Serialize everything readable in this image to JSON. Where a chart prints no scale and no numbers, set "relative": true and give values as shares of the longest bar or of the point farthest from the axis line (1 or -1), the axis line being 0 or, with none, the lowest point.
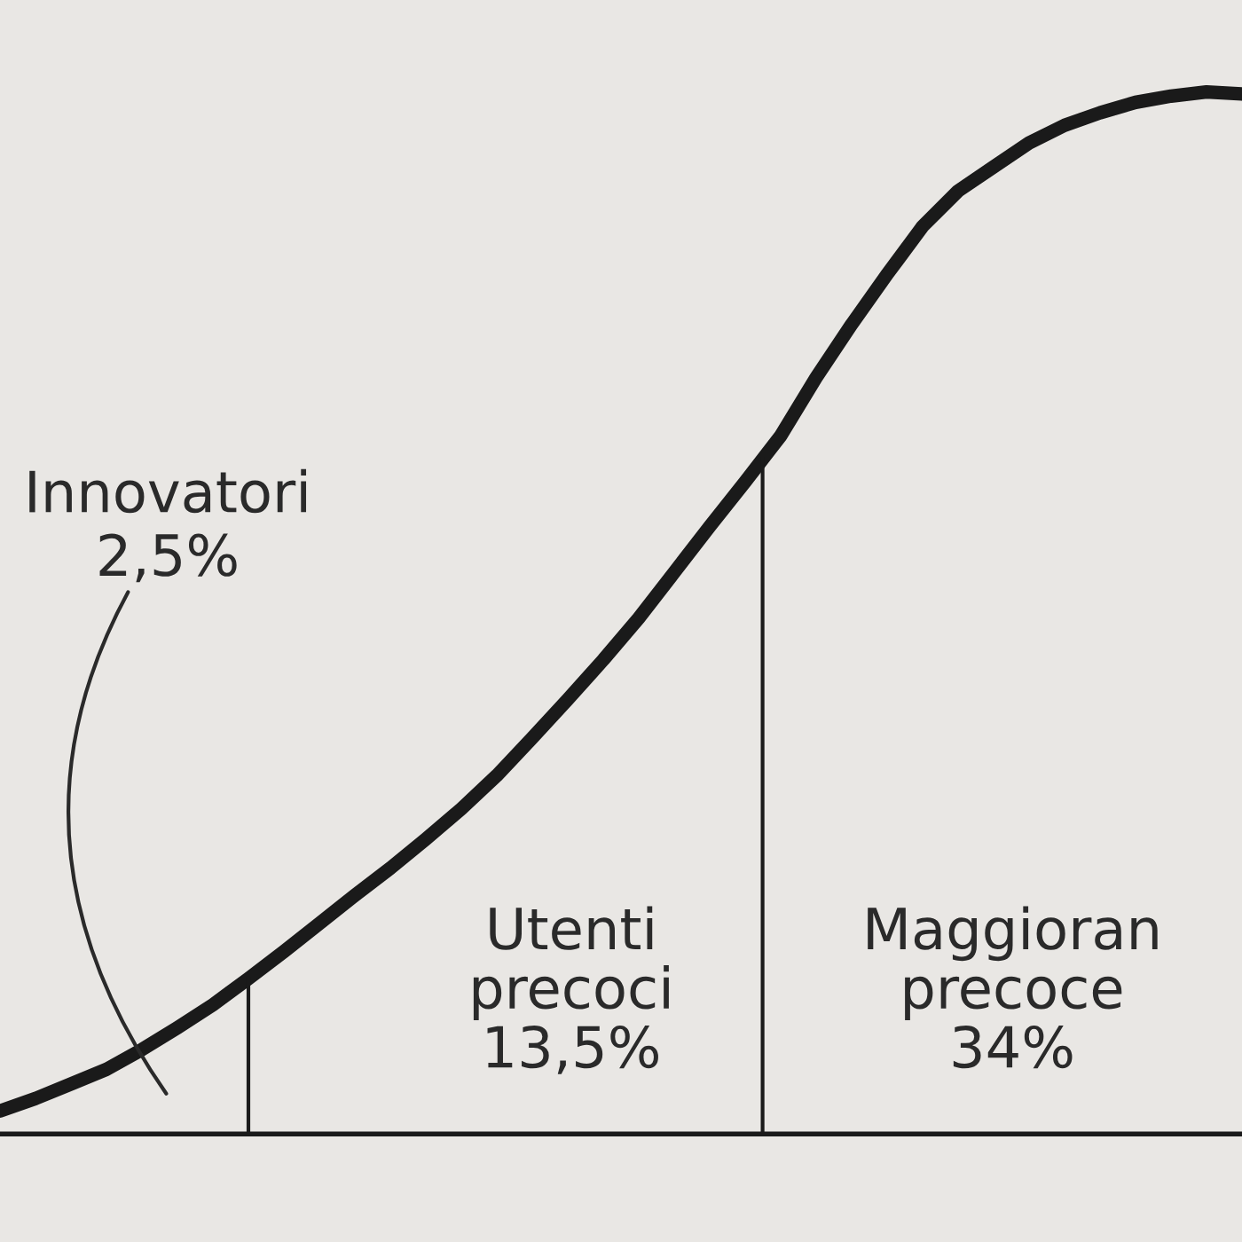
{
  "chart_data": {
    "type": "line",
    "relative": true,
    "tick_labels": false,
    "legend": false,
    "line_style": "solid",
    "categories": [
      null,
      null,
      null,
      null,
      null,
      null,
      null,
      null,
      null,
      null,
      null,
      null,
      null,
      null,
      null,
      null,
      null,
      null,
      null,
      null,
      null,
      null,
      null,
      null,
      null,
      null,
      null,
      null,
      null,
      null,
      null,
      null,
      null,
      null,
      null,
      null
    ],
    "series": [
      {
        "color": "#1a1a1a",
        "values": [
          0.022,
          0.034,
          0.048,
          0.062,
          0.081,
          0.102,
          0.124,
          0.149,
          0.175,
          0.202,
          0.229,
          0.255,
          0.283,
          0.312,
          0.344,
          0.38,
          0.417,
          0.455,
          0.495,
          0.539,
          0.583,
          0.626,
          0.67,
          0.726,
          0.777,
          0.825,
          0.871,
          0.905,
          0.928,
          0.951,
          0.968,
          0.98,
          0.99,
          0.996,
          1.0,
          0.998
        ]
      }
    ],
    "annotations": [
      "Innovatori\n2,5%",
      "Utenti\nprecoci\n13,5%",
      "Maggioran\nprecoce\n34%"
    ]
  }
}
